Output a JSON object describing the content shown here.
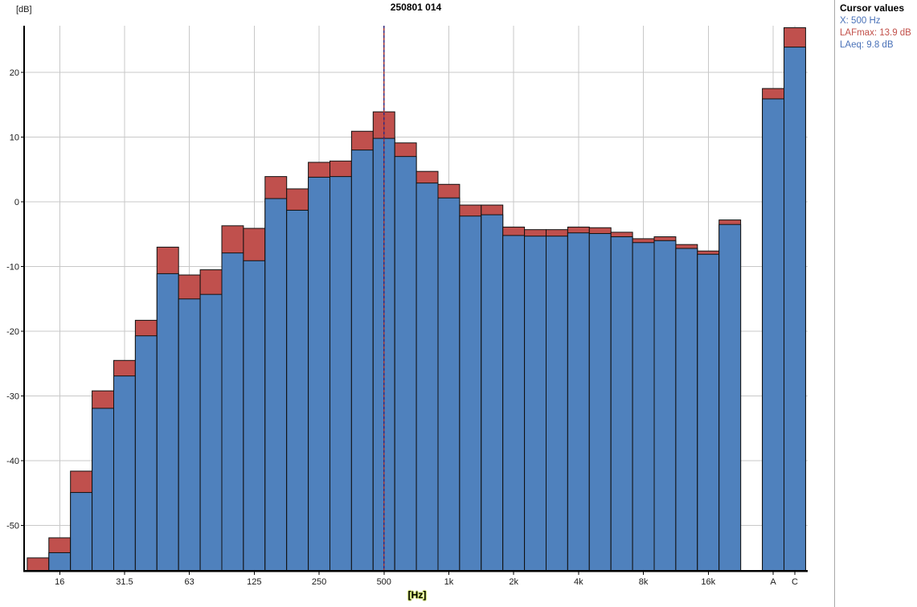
{
  "chart_data": {
    "type": "bar",
    "title": "250801 014",
    "ylabel": "[dB]",
    "xlabel": "[Hz]",
    "ylim": [
      -57,
      27.2
    ],
    "yticks": [
      20,
      10,
      0,
      -10,
      -20,
      -30,
      -40,
      -50
    ],
    "grid": true,
    "legend_position": "none",
    "categories": [
      "12.5",
      "16",
      "20",
      "25",
      "31.5",
      "40",
      "50",
      "63",
      "80",
      "100",
      "125",
      "160",
      "200",
      "250",
      "315",
      "400",
      "500",
      "630",
      "800",
      "1k",
      "1.25k",
      "1.6k",
      "2k",
      "2.5k",
      "3.15k",
      "4k",
      "5k",
      "6.3k",
      "8k",
      "10k",
      "12.5k",
      "16k",
      "20k"
    ],
    "series": [
      {
        "name": "LAFmax",
        "color": "#c0504d",
        "values": [
          -55.0,
          -51.9,
          -41.6,
          -29.2,
          -24.5,
          -18.3,
          -7.0,
          -11.3,
          -10.5,
          -3.7,
          -4.1,
          3.9,
          2.0,
          6.1,
          6.3,
          10.9,
          13.9,
          9.1,
          4.7,
          2.7,
          -0.5,
          -0.5,
          -3.9,
          -4.3,
          -4.3,
          -3.9,
          -4.0,
          -4.7,
          -5.7,
          -5.4,
          -6.6,
          -7.6,
          -2.8
        ]
      },
      {
        "name": "LAeq",
        "color": "#4f81bd",
        "values": [
          -57.0,
          -54.2,
          -44.9,
          -31.9,
          -26.9,
          -20.7,
          -11.1,
          -15.0,
          -14.3,
          -7.9,
          -9.1,
          0.5,
          -1.3,
          3.8,
          3.9,
          8.0,
          9.8,
          7.0,
          2.9,
          0.6,
          -2.2,
          -2.0,
          -5.2,
          -5.3,
          -5.3,
          -4.8,
          -4.9,
          -5.4,
          -6.3,
          -6.0,
          -7.2,
          -8.1,
          -3.5
        ]
      }
    ],
    "extra_bars": [
      {
        "label": "A",
        "LAFmax": 17.5,
        "LAeq": 15.9
      },
      {
        "label": "C",
        "LAFmax": 26.9,
        "LAeq": 23.9
      }
    ],
    "xtick_labels": [
      "16",
      "31.5",
      "63",
      "125",
      "250",
      "500",
      "1k",
      "2k",
      "4k",
      "8k",
      "16k"
    ],
    "xtick_band_indices": [
      1,
      4,
      7,
      10,
      13,
      16,
      19,
      22,
      25,
      28,
      31
    ],
    "cursor": {
      "band": "500",
      "band_index": 16
    }
  },
  "cursor_panel": {
    "title": "Cursor values",
    "lines": [
      {
        "label": "X: 500 Hz",
        "color": "#4a72b8"
      },
      {
        "label": "LAFmax: 13.9 dB",
        "color": "#c2504a"
      },
      {
        "label": "LAeq: 9.8 dB",
        "color": "#4a72b8"
      }
    ]
  },
  "colors": {
    "bar_blue": "#4f81bd",
    "bar_red": "#c0504d",
    "bar_border": "#111111",
    "grid": "#c8c8c8",
    "axis": "#000000",
    "cursor_dash_red": "#a03636",
    "cursor_dash_blue": "#33297d",
    "panel_divider": "#a8a8a8"
  }
}
